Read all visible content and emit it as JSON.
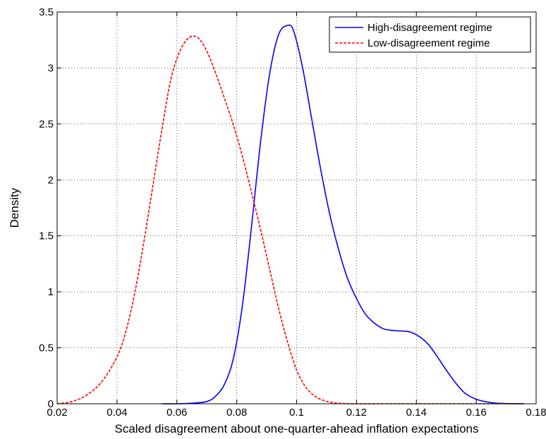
{
  "chart_data": {
    "type": "line",
    "title": "",
    "xlabel": "Scaled disagreement about one-quarter-ahead inflation expectations",
    "ylabel": "Density",
    "xlim": [
      0.02,
      0.18
    ],
    "ylim": [
      0,
      3.5
    ],
    "x_ticks": [
      "0.02",
      "0.04",
      "0.06",
      "0.08",
      "0.1",
      "0.12",
      "0.14",
      "0.16",
      "0.18"
    ],
    "y_ticks": [
      "0",
      "0.5",
      "1",
      "1.5",
      "2",
      "2.5",
      "3",
      "3.5"
    ],
    "grid": true,
    "legend_position": "top-right",
    "series": [
      {
        "name": "High-disagreement regime",
        "color": "#0000ff",
        "style": "solid",
        "x": [
          0.055,
          0.06,
          0.065,
          0.07,
          0.073,
          0.076,
          0.079,
          0.082,
          0.085,
          0.088,
          0.091,
          0.094,
          0.097,
          0.099,
          0.102,
          0.105,
          0.108,
          0.111,
          0.114,
          0.117,
          0.12,
          0.123,
          0.126,
          0.129,
          0.132,
          0.135,
          0.138,
          0.141,
          0.144,
          0.147,
          0.15,
          0.153,
          0.156,
          0.16,
          0.165,
          0.17,
          0.176
        ],
        "y": [
          0.0,
          0.0,
          0.005,
          0.02,
          0.07,
          0.18,
          0.42,
          0.9,
          1.6,
          2.35,
          2.95,
          3.3,
          3.38,
          3.33,
          3.0,
          2.55,
          2.1,
          1.7,
          1.38,
          1.12,
          0.94,
          0.8,
          0.72,
          0.67,
          0.655,
          0.65,
          0.64,
          0.6,
          0.53,
          0.42,
          0.3,
          0.19,
          0.1,
          0.04,
          0.01,
          0.002,
          0.0
        ]
      },
      {
        "name": "Low-disagreement regime",
        "color": "#ff0000",
        "style": "dashed",
        "x": [
          0.02,
          0.025,
          0.03,
          0.035,
          0.04,
          0.043,
          0.046,
          0.049,
          0.052,
          0.055,
          0.058,
          0.061,
          0.064,
          0.067,
          0.07,
          0.073,
          0.076,
          0.079,
          0.082,
          0.085,
          0.088,
          0.091,
          0.094,
          0.097,
          0.1,
          0.103,
          0.106,
          0.109,
          0.112,
          0.115,
          0.12,
          0.13,
          0.14,
          0.176
        ],
        "y": [
          0.0,
          0.02,
          0.08,
          0.2,
          0.42,
          0.65,
          1.0,
          1.45,
          1.95,
          2.45,
          2.9,
          3.15,
          3.27,
          3.27,
          3.15,
          2.95,
          2.72,
          2.48,
          2.2,
          1.88,
          1.55,
          1.2,
          0.85,
          0.55,
          0.3,
          0.15,
          0.07,
          0.03,
          0.01,
          0.003,
          0.0,
          0.0,
          0.0,
          0.0
        ]
      }
    ]
  }
}
